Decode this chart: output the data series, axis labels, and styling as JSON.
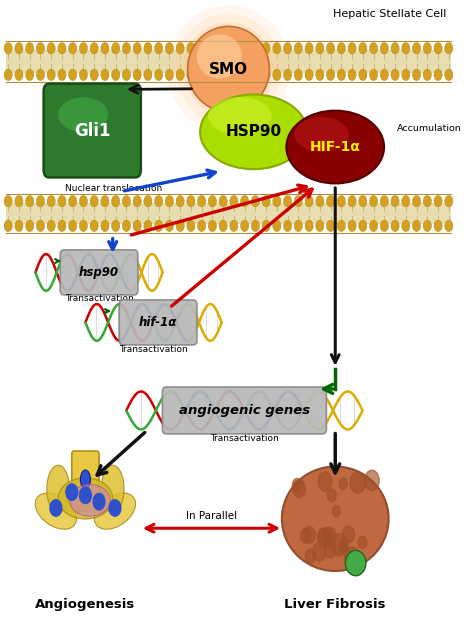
{
  "title": "Hepatic Stellate Cell",
  "background_color": "#ffffff",
  "figsize": [
    4.74,
    6.36
  ],
  "dpi": 100,
  "smo_label": "SMO",
  "gli1_label": "Gli1",
  "hsp90_label": "HSP90",
  "hif1a_label": "HIF-1α",
  "accumulation_label": "Accumulation",
  "nuclear_translocation_label": "Nuclear translocation",
  "hsp90_gene_label": "hsp90",
  "hif1a_gene_label": "hif-1α",
  "transactivation_label": "Transactivation",
  "angiogenic_label": "angiogenic genes",
  "in_parallel_label": "In Parallel",
  "angiogenesis_label": "Angiogenesis",
  "liver_fibrosis_label": "Liver Fibrosis",
  "smo_color": "#f4a060",
  "smo_glow": "#ffcc99",
  "gli1_color": "#2d7a2d",
  "gli1_edge": "#1a4d1a",
  "hsp90_color": "#aadd00",
  "hsp90_edge": "#88aa00",
  "hif1a_color": "#880000",
  "hif1a_edge": "#550000",
  "membrane_body": "#d4b86a",
  "membrane_edge": "#b09040",
  "membrane_head": "#d4a020",
  "gene_box_color": "#b8b8b8",
  "gene_box_edge": "#888888",
  "angio_box_color": "#b8b8b8",
  "arrow_black": "#111111",
  "arrow_red": "#cc0000",
  "arrow_blue": "#1144cc",
  "arrow_green": "#006600",
  "dna_colors": [
    "#cc0000",
    "#0055cc",
    "#33aa33",
    "#ddaa00"
  ],
  "dna_colors2": [
    "#33aa33",
    "#cc0000",
    "#0055cc",
    "#ddaa00"
  ]
}
